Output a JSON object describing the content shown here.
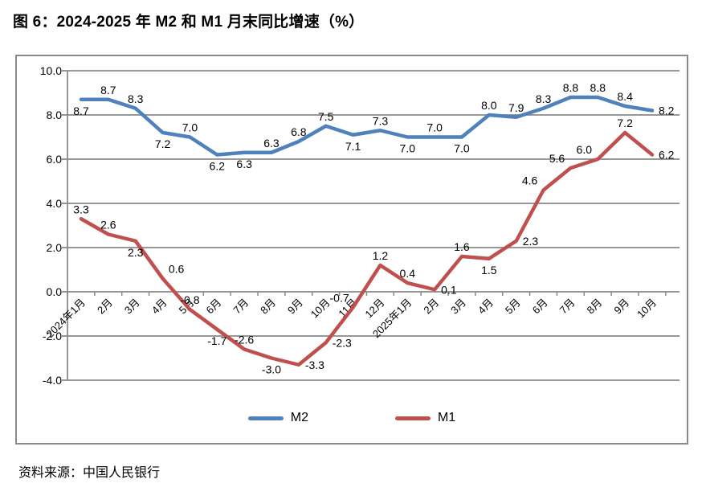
{
  "title": "图 6：2024-2025 年 M2 和 M1 月末同比增速（%）",
  "source": "资料来源：中国人民银行",
  "legend": [
    {
      "label": "M2",
      "color": "#4f81bd"
    },
    {
      "label": "M1",
      "color": "#c0504d"
    }
  ],
  "chart_data": {
    "type": "line",
    "title": "图 6：2024-2025 年 M2 和 M1 月末同比增速（%）",
    "xlabel": "",
    "ylabel": "",
    "categories": [
      "2024年1月",
      "2月",
      "3月",
      "4月",
      "5月",
      "6月",
      "7月",
      "8月",
      "9月",
      "10月",
      "11月",
      "12月",
      "2025年1月",
      "2月",
      "3月",
      "4月",
      "5月",
      "6月",
      "7月",
      "8月",
      "9月",
      "10月"
    ],
    "series": [
      {
        "name": "M2",
        "color": "#4f81bd",
        "values": [
          8.7,
          8.7,
          8.3,
          7.2,
          7.0,
          6.2,
          6.3,
          6.3,
          6.8,
          7.5,
          7.1,
          7.3,
          7.0,
          7.0,
          7.0,
          8.0,
          7.9,
          8.3,
          8.8,
          8.8,
          8.4,
          8.2
        ],
        "label_pos": [
          "below",
          "above",
          "above",
          "below",
          "above",
          "below",
          "below",
          "above",
          "above",
          "above",
          "below",
          "above",
          "below",
          "above",
          "below",
          "above",
          "above",
          "above",
          "above",
          "above",
          "above",
          "right"
        ]
      },
      {
        "name": "M1",
        "color": "#c0504d",
        "values": [
          3.3,
          2.6,
          2.3,
          0.6,
          -0.8,
          -1.7,
          -2.6,
          -3.0,
          -3.3,
          -2.3,
          -0.7,
          1.2,
          0.4,
          0.1,
          1.6,
          1.5,
          2.3,
          4.6,
          5.6,
          6.0,
          7.2,
          6.2
        ],
        "label_pos": [
          "above",
          "above",
          "below",
          "above-right",
          "above",
          "below",
          "above",
          "below",
          "right",
          "right",
          "above-left",
          "above",
          "above",
          "right",
          "above",
          "below",
          "right",
          "above-left",
          "above-left",
          "above-left",
          "above",
          "right"
        ]
      }
    ],
    "ylim": [
      -4.0,
      10.0
    ],
    "ytick_step": 2.0,
    "ytick_labels": [
      "10.0",
      "8.0",
      "6.0",
      "4.0",
      "2.0",
      "0.0",
      "-2.0",
      "-4.0"
    ],
    "grid": true,
    "legend_position": "bottom",
    "gridline_color": "#8a8a8a",
    "axis_color": "#8a8a8a",
    "data_label_decimals": 1
  }
}
